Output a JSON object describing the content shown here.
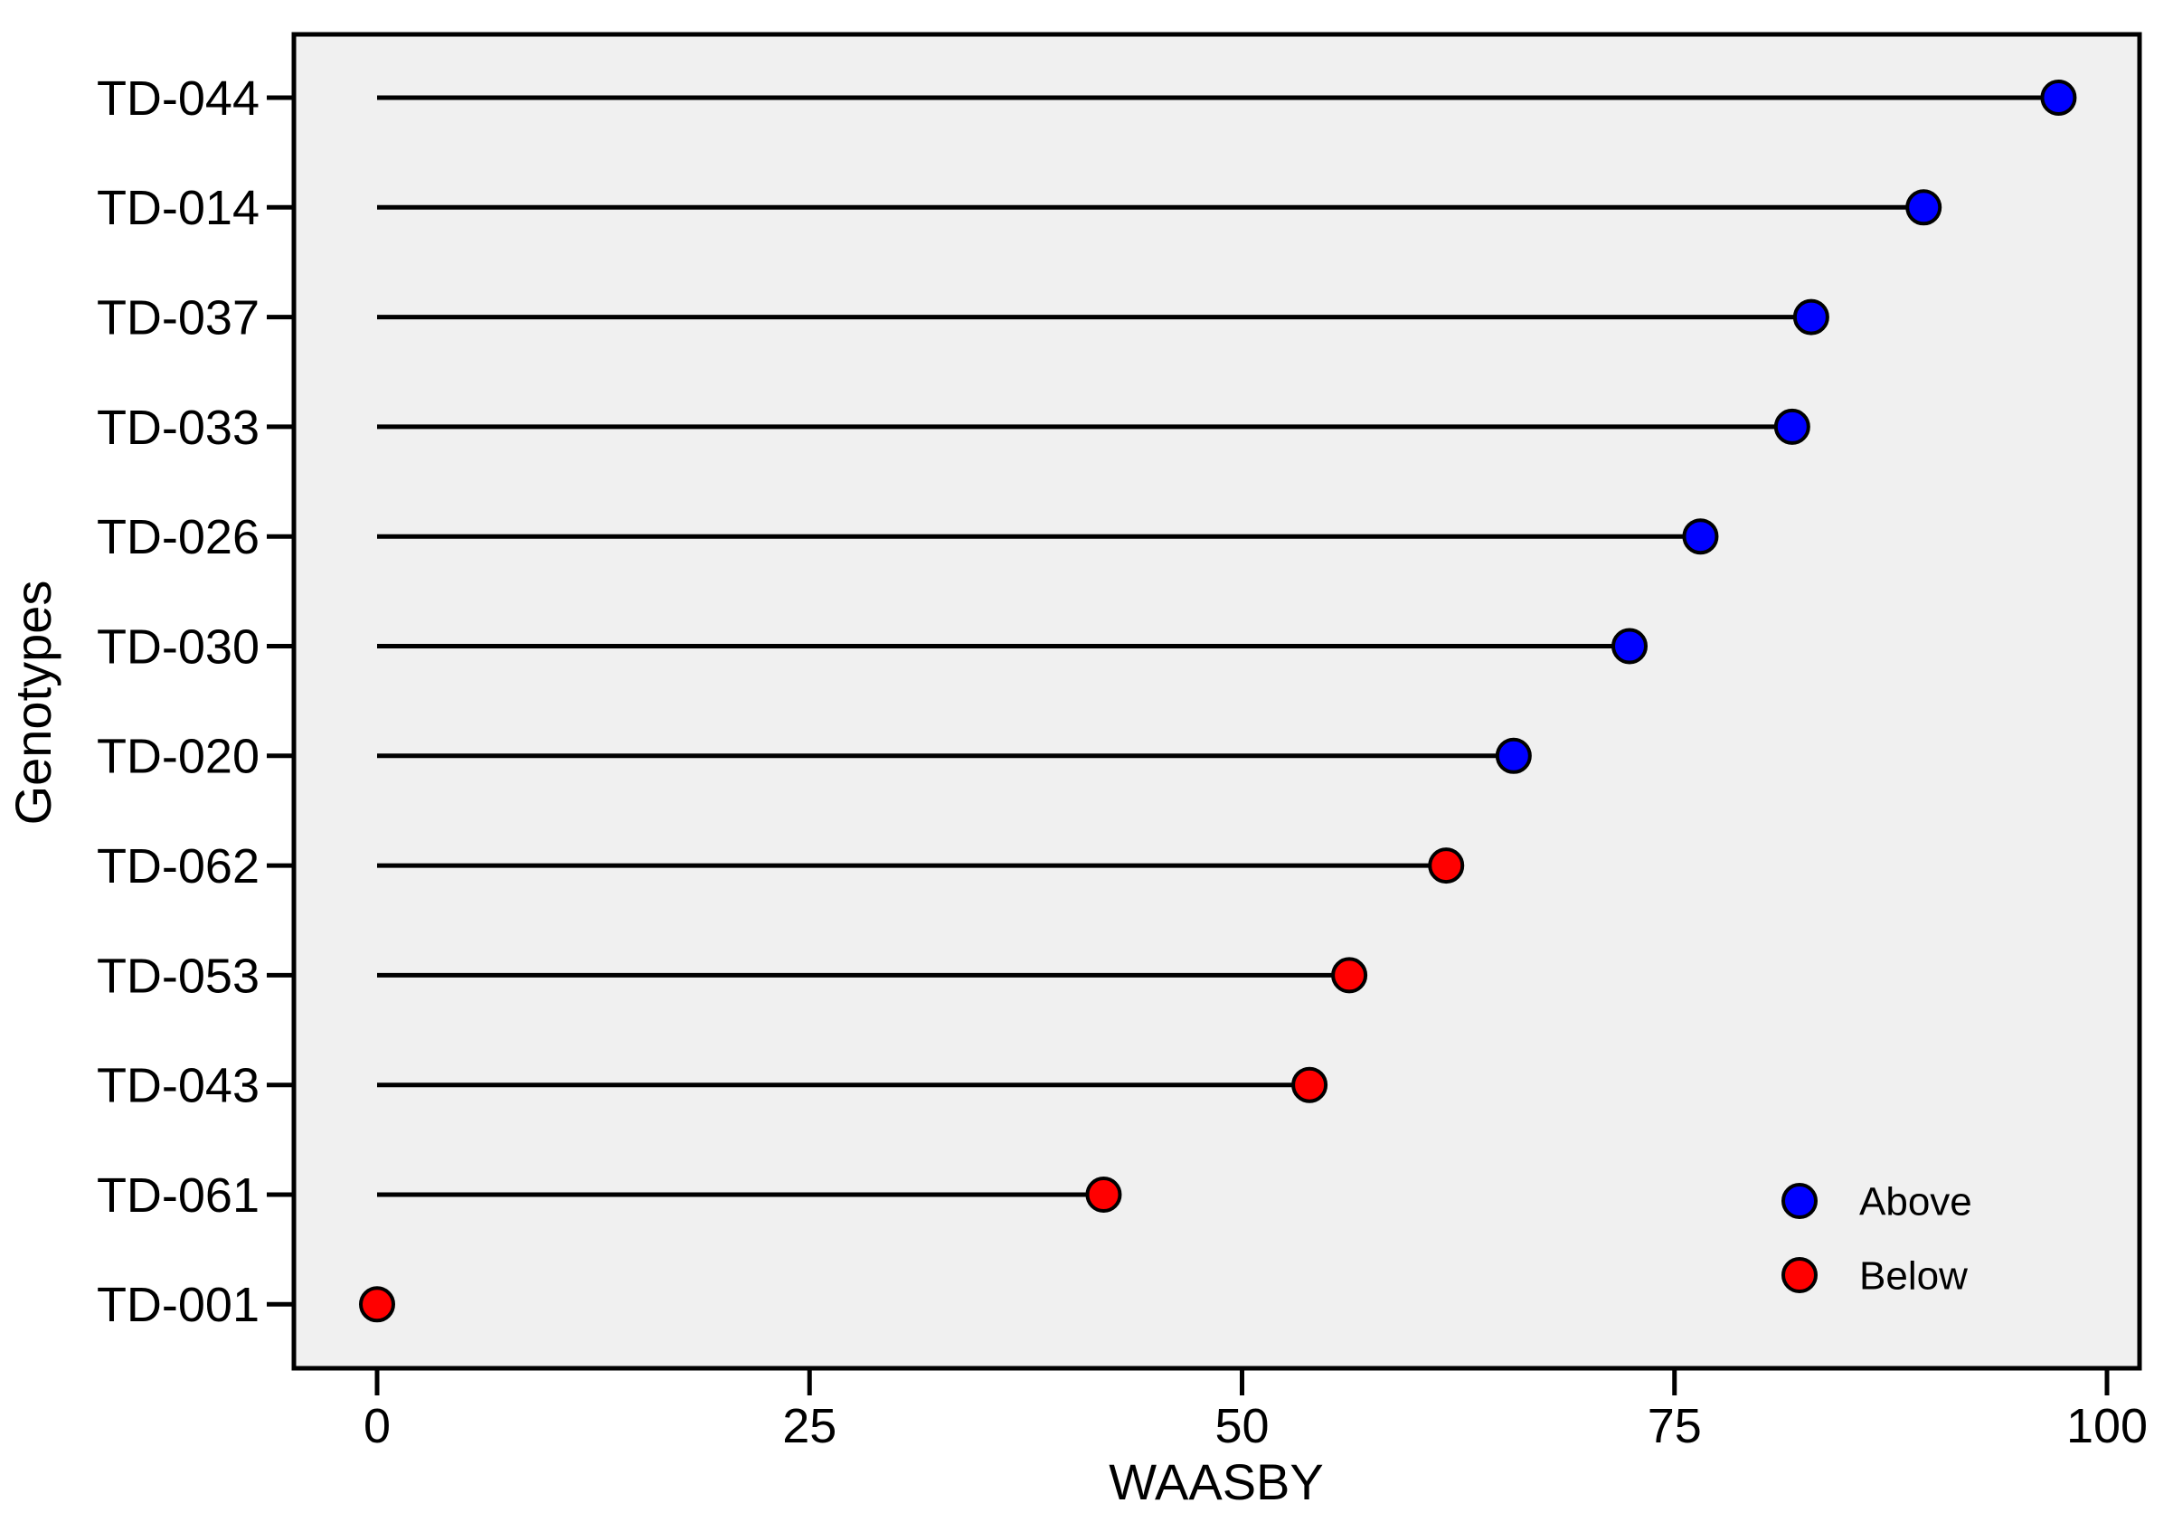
{
  "chart_data": {
    "type": "scatter",
    "variant": "lollipop",
    "title": "",
    "xlabel": "WAASBY",
    "ylabel": "Genotypes",
    "x_ticks": [
      0,
      25,
      50,
      75,
      100
    ],
    "xlim": [
      -4.8,
      102
    ],
    "grid": false,
    "legend_position": "inside-bottom-right",
    "panel_bg": "#F0F0F0",
    "stem_color": "#000000",
    "marker_outline": "#000000",
    "categories": [
      "TD-044",
      "TD-014",
      "TD-037",
      "TD-033",
      "TD-026",
      "TD-030",
      "TD-020",
      "TD-062",
      "TD-053",
      "TD-043",
      "TD-061",
      "TD-001"
    ],
    "values": [
      97.2,
      89.4,
      82.9,
      81.8,
      76.5,
      72.4,
      65.7,
      61.8,
      56.2,
      53.9,
      42.0,
      0.0
    ],
    "groups": [
      "Above",
      "Above",
      "Above",
      "Above",
      "Above",
      "Above",
      "Above",
      "Below",
      "Below",
      "Below",
      "Below",
      "Below"
    ],
    "legend": {
      "items": [
        {
          "label": "Above",
          "color": "#0000FF"
        },
        {
          "label": "Below",
          "color": "#FF0000"
        }
      ]
    }
  }
}
